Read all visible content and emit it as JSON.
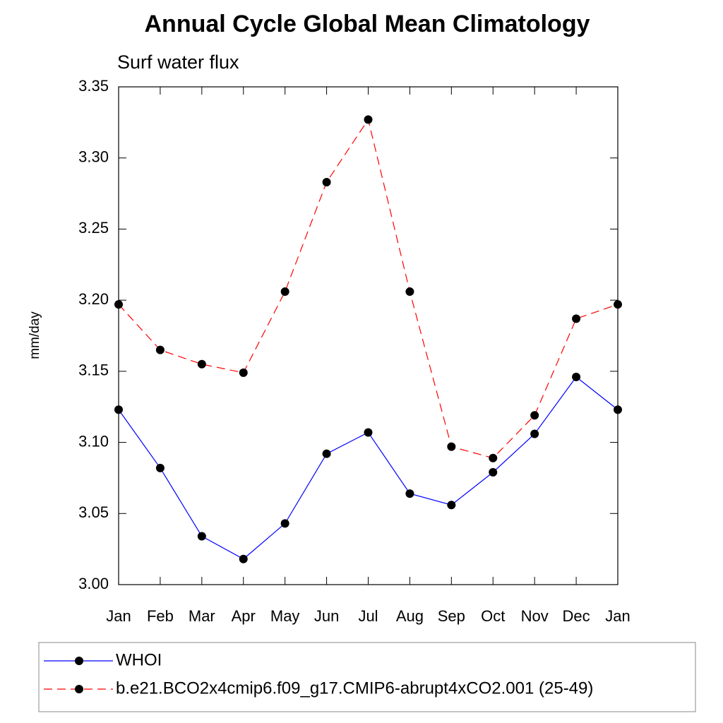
{
  "chart_data": {
    "type": "line",
    "title": "Annual Cycle Global Mean Climatology",
    "subtitle": "Surf water flux",
    "y_label": "mm/day",
    "categories": [
      "Jan",
      "Feb",
      "Mar",
      "Apr",
      "May",
      "Jun",
      "Jul",
      "Aug",
      "Sep",
      "Oct",
      "Nov",
      "Dec",
      "Jan"
    ],
    "series": [
      {
        "name": "WHOI",
        "color": "#0000ff",
        "dashed": false,
        "values": [
          3.123,
          3.082,
          3.034,
          3.018,
          3.043,
          3.092,
          3.107,
          3.064,
          3.056,
          3.079,
          3.106,
          3.146,
          3.123
        ]
      },
      {
        "name": "b.e21.BCO2x4cmip6.f09_g17.CMIP6-abrupt4xCO2.001 (25-49)",
        "color": "#ff0000",
        "dashed": true,
        "values": [
          3.197,
          3.165,
          3.155,
          3.149,
          3.206,
          3.283,
          3.327,
          3.206,
          3.097,
          3.089,
          3.119,
          3.187,
          3.197
        ]
      }
    ],
    "marker_color": "#000000",
    "ylim": [
      3.0,
      3.35
    ],
    "yticks": [
      {
        "value": 3.0,
        "label": "3.00"
      },
      3.05,
      {
        "value": 3.1,
        "label": "3.10"
      },
      3.15,
      {
        "value": 3.2,
        "label": "3.20"
      },
      3.25,
      {
        "value": 3.3,
        "label": "3.30"
      },
      3.35
    ]
  }
}
